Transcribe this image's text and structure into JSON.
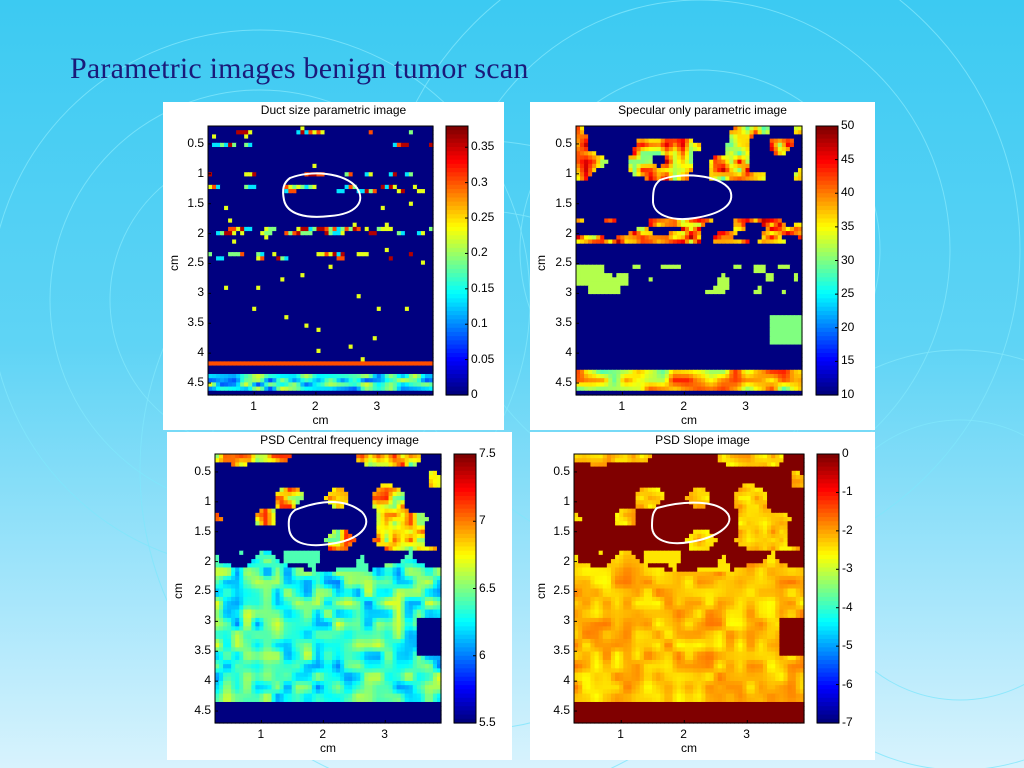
{
  "slide": {
    "title": "Parametric images benign tumor scan"
  },
  "colors": {
    "background_top": "#3ccaf2",
    "background_bottom": "#d8f3fd",
    "title_text": "#1a1a7a",
    "colormap": "jet",
    "roi_outline": "#ffffff"
  },
  "panels": [
    {
      "title": "Duct size parametric image",
      "xlabel": "cm",
      "ylabel": "cm",
      "x_ticks": [
        "1",
        "2",
        "3"
      ],
      "y_ticks": [
        "0.5",
        "1",
        "1.5",
        "2",
        "2.5",
        "3",
        "3.5",
        "4",
        "4.5"
      ],
      "colorbar_ticks": [
        "0.35",
        "0.3",
        "0.25",
        "0.2",
        "0.15",
        "0.1",
        "0.05",
        "0"
      ],
      "colorbar_range": [
        0,
        0.38
      ]
    },
    {
      "title": "Specular only parametric image",
      "xlabel": "cm",
      "ylabel": "cm",
      "x_ticks": [
        "1",
        "2",
        "3"
      ],
      "y_ticks": [
        "0.5",
        "1",
        "1.5",
        "2",
        "2.5",
        "3",
        "3.5",
        "4",
        "4.5"
      ],
      "colorbar_ticks": [
        "50",
        "45",
        "40",
        "35",
        "30",
        "25",
        "20",
        "15",
        "10"
      ],
      "colorbar_range": [
        10,
        50
      ]
    },
    {
      "title": "PSD Central frequency image",
      "xlabel": "cm",
      "ylabel": "cm",
      "x_ticks": [
        "1",
        "2",
        "3"
      ],
      "y_ticks": [
        "0.5",
        "1",
        "1.5",
        "2",
        "2.5",
        "3",
        "3.5",
        "4",
        "4.5"
      ],
      "colorbar_ticks": [
        "7.5",
        "7",
        "6.5",
        "6",
        "5.5"
      ],
      "colorbar_range": [
        5.5,
        7.5
      ]
    },
    {
      "title": "PSD Slope image",
      "xlabel": "cm",
      "ylabel": "cm",
      "x_ticks": [
        "1",
        "2",
        "3"
      ],
      "y_ticks": [
        "0.5",
        "1",
        "1.5",
        "2",
        "2.5",
        "3",
        "3.5",
        "4",
        "4.5"
      ],
      "colorbar_ticks": [
        "0",
        "-1",
        "-2",
        "-3",
        "-4",
        "-5",
        "-6",
        "-7"
      ],
      "colorbar_range": [
        -7,
        0
      ]
    }
  ]
}
